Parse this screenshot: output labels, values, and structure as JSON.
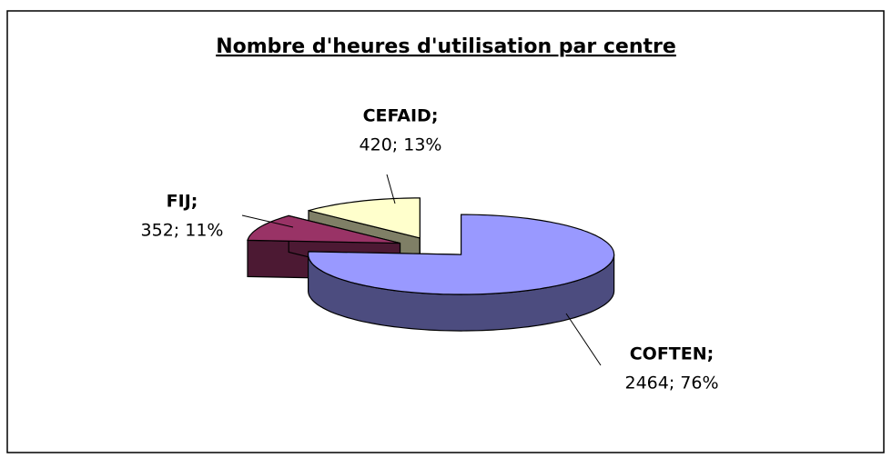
{
  "chart_data": {
    "type": "pie3d",
    "title": "Nombre d'heures d'utilisation par centre",
    "categories": [
      "COFTEN;",
      "FIJ;",
      "CEFAID;"
    ],
    "values": [
      2464,
      352,
      420
    ],
    "value_labels": [
      "2464; 76%",
      "352; 11%",
      "420; 13%"
    ],
    "colors": [
      "#9999ff",
      "#993366",
      "#ffffcc"
    ]
  }
}
